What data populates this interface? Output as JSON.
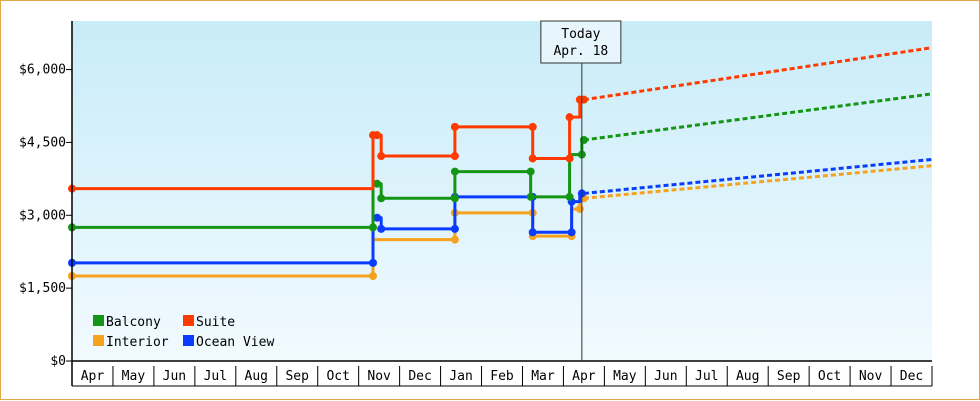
{
  "chart_data": {
    "type": "line",
    "title": "",
    "xlabel": "",
    "ylabel": "",
    "ylim": [
      0,
      7000
    ],
    "y_ticks": [
      {
        "value": 0,
        "label": "$0"
      },
      {
        "value": 1500,
        "label": "$1,500"
      },
      {
        "value": 3000,
        "label": "$3,000"
      },
      {
        "value": 4500,
        "label": "$4,500"
      },
      {
        "value": 6000,
        "label": "$6,000"
      }
    ],
    "x_ticks": [
      "Apr",
      "May",
      "Jun",
      "Jul",
      "Aug",
      "Sep",
      "Oct",
      "Nov",
      "Dec",
      "Jan",
      "Feb",
      "Mar",
      "Apr",
      "May",
      "Jun",
      "Jul",
      "Aug",
      "Sep",
      "Oct",
      "Nov",
      "Dec"
    ],
    "x_unit": "months since start of Apr (first label)",
    "xlim": [
      0,
      21
    ],
    "today": {
      "label": "Today",
      "date": "Apr. 18",
      "x": 12.45
    },
    "legend": {
      "placement": "bottom-left",
      "order": [
        "Balcony",
        "Suite",
        "Interior",
        "Ocean View"
      ]
    },
    "background": {
      "top": "#c8ecf8",
      "bottom": "#f2faff"
    },
    "grid": false,
    "series": [
      {
        "name": "Suite",
        "color": "#ff3a00",
        "points": [
          [
            0,
            3550
          ],
          [
            7.35,
            3550
          ],
          [
            7.35,
            4650
          ],
          [
            7.45,
            4650
          ],
          [
            7.45,
            4650
          ],
          [
            7.55,
            4650
          ],
          [
            7.55,
            4220
          ],
          [
            9.35,
            4220
          ],
          [
            9.35,
            4820
          ],
          [
            11.25,
            4820
          ],
          [
            11.25,
            4170
          ],
          [
            12.15,
            4170
          ],
          [
            12.15,
            5020
          ],
          [
            12.4,
            5020
          ],
          [
            12.4,
            5380
          ],
          [
            12.5,
            5380
          ]
        ],
        "markers": [
          [
            0,
            3550
          ],
          [
            7.35,
            4650
          ],
          [
            7.45,
            4650
          ],
          [
            7.55,
            4220
          ],
          [
            9.35,
            4220
          ],
          [
            9.35,
            4820
          ],
          [
            11.25,
            4820
          ],
          [
            11.25,
            4170
          ],
          [
            12.15,
            4170
          ],
          [
            12.15,
            5020
          ],
          [
            12.4,
            5380
          ],
          [
            12.5,
            5380
          ]
        ],
        "projection": [
          [
            12.5,
            5380
          ],
          [
            21,
            6450
          ]
        ]
      },
      {
        "name": "Balcony",
        "color": "#149614",
        "points": [
          [
            0,
            2750
          ],
          [
            7.35,
            2750
          ],
          [
            7.35,
            3650
          ],
          [
            7.55,
            3650
          ],
          [
            7.55,
            3350
          ],
          [
            9.35,
            3350
          ],
          [
            9.35,
            3900
          ],
          [
            11.2,
            3900
          ],
          [
            11.2,
            3380
          ],
          [
            12.15,
            3380
          ],
          [
            12.15,
            4250
          ],
          [
            12.45,
            4250
          ],
          [
            12.45,
            4550
          ],
          [
            12.5,
            4550
          ]
        ],
        "markers": [
          [
            0,
            2750
          ],
          [
            7.35,
            2750
          ],
          [
            7.45,
            3650
          ],
          [
            7.55,
            3350
          ],
          [
            9.35,
            3350
          ],
          [
            9.35,
            3900
          ],
          [
            11.2,
            3900
          ],
          [
            11.2,
            3380
          ],
          [
            12.15,
            3380
          ],
          [
            12.45,
            4250
          ],
          [
            12.5,
            4550
          ]
        ],
        "projection": [
          [
            12.5,
            4550
          ],
          [
            21,
            5500
          ]
        ]
      },
      {
        "name": "Ocean View",
        "color": "#0a3cff",
        "points": [
          [
            0,
            2020
          ],
          [
            7.35,
            2020
          ],
          [
            7.35,
            2950
          ],
          [
            7.55,
            2950
          ],
          [
            7.55,
            2720
          ],
          [
            9.35,
            2720
          ],
          [
            9.35,
            3380
          ],
          [
            11.25,
            3380
          ],
          [
            11.25,
            2650
          ],
          [
            12.2,
            2650
          ],
          [
            12.2,
            3280
          ],
          [
            12.4,
            3280
          ],
          [
            12.4,
            3450
          ],
          [
            12.5,
            3450
          ]
        ],
        "markers": [
          [
            0,
            2020
          ],
          [
            7.35,
            2020
          ],
          [
            7.45,
            2950
          ],
          [
            7.55,
            2720
          ],
          [
            9.35,
            2720
          ],
          [
            9.35,
            3380
          ],
          [
            11.25,
            3380
          ],
          [
            11.25,
            2650
          ],
          [
            12.2,
            2650
          ],
          [
            12.2,
            3280
          ],
          [
            12.45,
            3450
          ]
        ],
        "projection": [
          [
            12.5,
            3450
          ],
          [
            21,
            4150
          ]
        ]
      },
      {
        "name": "Interior",
        "color": "#f5a21e",
        "points": [
          [
            0,
            1750
          ],
          [
            7.35,
            1750
          ],
          [
            7.35,
            2500
          ],
          [
            9.35,
            2500
          ],
          [
            9.35,
            3050
          ],
          [
            11.25,
            3050
          ],
          [
            11.25,
            2570
          ],
          [
            12.2,
            2570
          ],
          [
            12.2,
            3130
          ],
          [
            12.4,
            3130
          ],
          [
            12.4,
            3350
          ],
          [
            12.5,
            3350
          ]
        ],
        "markers": [
          [
            0,
            1750
          ],
          [
            7.35,
            1750
          ],
          [
            9.35,
            2500
          ],
          [
            9.35,
            3050
          ],
          [
            11.25,
            3050
          ],
          [
            11.25,
            2570
          ],
          [
            12.2,
            2570
          ],
          [
            12.4,
            3130
          ],
          [
            12.5,
            3350
          ]
        ],
        "projection": [
          [
            12.5,
            3350
          ],
          [
            21,
            4020
          ]
        ]
      }
    ]
  }
}
